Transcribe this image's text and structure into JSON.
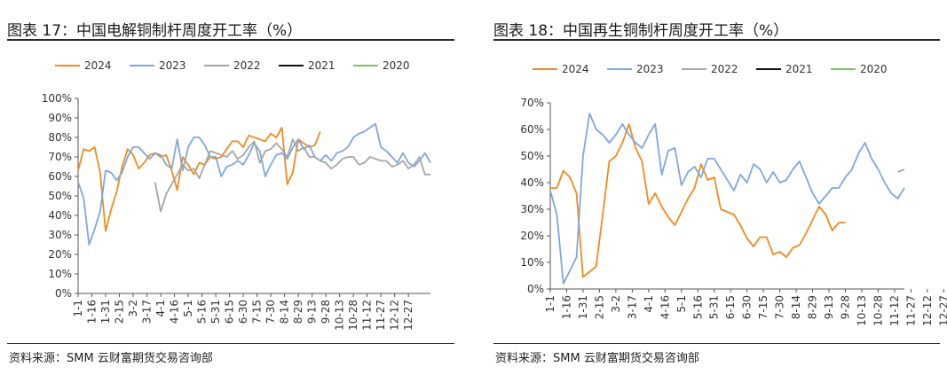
{
  "chart_data": [
    {
      "type": "line",
      "title": "图表 17：中国电解铜制杆周度开工率（%）",
      "source": "资料来源：SMM 云财富期货交易咨询部",
      "xlabel": "",
      "ylabel": "",
      "ylim": [
        0,
        100
      ],
      "y_ticks": [
        "0%",
        "10%",
        "20%",
        "30%",
        "40%",
        "50%",
        "60%",
        "70%",
        "80%",
        "90%",
        "100%"
      ],
      "x_ticks": [
        "1-1",
        "1-16",
        "1-31",
        "2-15",
        "3-2",
        "3-17",
        "4-1",
        "4-16",
        "5-1",
        "5-16",
        "5-31",
        "6-15",
        "6-30",
        "7-15",
        "7-30",
        "8-14",
        "8-29",
        "9-13",
        "9-28",
        "10-13",
        "10-28",
        "11-12",
        "11-27",
        "12-12",
        "12-27"
      ],
      "grid": false,
      "legend_position": "top",
      "series": [
        {
          "name": "2024",
          "color": "#F28A1E",
          "points": [
            [
              0,
              63
            ],
            [
              1,
              74
            ],
            [
              2,
              73
            ],
            [
              3,
              75
            ],
            [
              4,
              62
            ],
            [
              5,
              32
            ],
            [
              6,
              43
            ],
            [
              7,
              52
            ],
            [
              8,
              65
            ],
            [
              9,
              74
            ],
            [
              10,
              71
            ],
            [
              11,
              64
            ],
            [
              12,
              67
            ],
            [
              13,
              71
            ],
            [
              14,
              72
            ],
            [
              15,
              70
            ],
            [
              16,
              71
            ],
            [
              17,
              63
            ],
            [
              18,
              53
            ],
            [
              19,
              70
            ],
            [
              20,
              66
            ],
            [
              21,
              61
            ],
            [
              22,
              67
            ],
            [
              23,
              66
            ],
            [
              24,
              70
            ],
            [
              25,
              69
            ],
            [
              26,
              70
            ],
            [
              27,
              74
            ],
            [
              28,
              78
            ],
            [
              29,
              78
            ],
            [
              30,
              75
            ],
            [
              31,
              81
            ],
            [
              32,
              80
            ],
            [
              33,
              79
            ],
            [
              34,
              78
            ],
            [
              35,
              82
            ],
            [
              36,
              80
            ],
            [
              37,
              85
            ],
            [
              38,
              56
            ],
            [
              39,
              62
            ],
            [
              40,
              79
            ],
            [
              41,
              77
            ],
            [
              42,
              75
            ],
            [
              43,
              76
            ],
            [
              44,
              83
            ]
          ]
        },
        {
          "name": "2023",
          "color": "#7EA8DE",
          "points": [
            [
              0,
              57
            ],
            [
              1,
              49
            ],
            [
              2,
              25
            ],
            [
              3,
              33
            ],
            [
              4,
              42
            ],
            [
              5,
              63
            ],
            [
              6,
              62
            ],
            [
              7,
              58
            ],
            [
              8,
              62
            ],
            [
              9,
              70
            ],
            [
              10,
              75
            ],
            [
              11,
              75
            ],
            [
              12,
              72
            ],
            [
              13,
              69
            ],
            [
              14,
              72
            ],
            [
              15,
              71
            ],
            [
              16,
              66
            ],
            [
              17,
              64
            ],
            [
              18,
              79
            ],
            [
              19,
              63
            ],
            [
              20,
              75
            ],
            [
              21,
              80
            ],
            [
              22,
              80
            ],
            [
              23,
              76
            ],
            [
              24,
              70
            ],
            [
              25,
              70
            ],
            [
              26,
              60
            ],
            [
              27,
              65
            ],
            [
              28,
              66
            ],
            [
              29,
              68
            ],
            [
              30,
              66
            ],
            [
              31,
              71
            ],
            [
              32,
              77
            ],
            [
              33,
              73
            ],
            [
              34,
              60
            ],
            [
              35,
              66
            ],
            [
              36,
              71
            ],
            [
              37,
              72
            ],
            [
              38,
              69
            ],
            [
              39,
              75
            ],
            [
              40,
              79
            ],
            [
              41,
              74
            ],
            [
              42,
              76
            ],
            [
              43,
              70
            ],
            [
              44,
              68
            ],
            [
              45,
              71
            ],
            [
              46,
              68
            ],
            [
              47,
              72
            ],
            [
              48,
              73
            ],
            [
              49,
              75
            ],
            [
              50,
              80
            ],
            [
              51,
              82
            ],
            [
              52,
              83
            ],
            [
              53,
              85
            ],
            [
              54,
              87
            ],
            [
              55,
              75
            ],
            [
              56,
              73
            ],
            [
              57,
              70
            ],
            [
              58,
              67
            ],
            [
              59,
              72
            ],
            [
              60,
              67
            ],
            [
              61,
              65
            ],
            [
              62,
              68
            ],
            [
              63,
              72
            ],
            [
              64,
              67
            ]
          ]
        },
        {
          "name": "2022",
          "color": "#A6A6A6",
          "points": [
            [
              14,
              57
            ],
            [
              15,
              42
            ],
            [
              16,
              51
            ],
            [
              17,
              56
            ],
            [
              18,
              61
            ],
            [
              19,
              66
            ],
            [
              20,
              63
            ],
            [
              21,
              64
            ],
            [
              22,
              59
            ],
            [
              23,
              66
            ],
            [
              24,
              73
            ],
            [
              25,
              72
            ],
            [
              26,
              71
            ],
            [
              27,
              70
            ],
            [
              28,
              73
            ],
            [
              29,
              69
            ],
            [
              30,
              71
            ],
            [
              31,
              75
            ],
            [
              32,
              78
            ],
            [
              33,
              67
            ],
            [
              34,
              73
            ],
            [
              35,
              74
            ],
            [
              36,
              77
            ],
            [
              37,
              74
            ],
            [
              38,
              70
            ],
            [
              39,
              79
            ],
            [
              40,
              73
            ],
            [
              41,
              75
            ],
            [
              42,
              70
            ],
            [
              43,
              70
            ],
            [
              44,
              68
            ],
            [
              45,
              67
            ],
            [
              46,
              64
            ],
            [
              47,
              66
            ],
            [
              48,
              69
            ],
            [
              49,
              70
            ],
            [
              50,
              70
            ],
            [
              51,
              66
            ],
            [
              52,
              67
            ],
            [
              53,
              70
            ],
            [
              54,
              69
            ],
            [
              55,
              68
            ],
            [
              56,
              68
            ],
            [
              57,
              65
            ],
            [
              58,
              66
            ],
            [
              59,
              68
            ],
            [
              60,
              64
            ],
            [
              61,
              66
            ],
            [
              62,
              70
            ],
            [
              63,
              61
            ],
            [
              64,
              61
            ]
          ]
        },
        {
          "name": "2021",
          "color": "#111111",
          "points": []
        },
        {
          "name": "2020",
          "color": "#7CC35A",
          "points": []
        }
      ]
    },
    {
      "type": "line",
      "title": "图表 18：中国再生铜制杆周度开工率（%）",
      "source": "资料来源：SMM 云财富期货交易咨询部",
      "xlabel": "",
      "ylabel": "",
      "ylim": [
        0,
        70
      ],
      "y_ticks": [
        "0%",
        "10%",
        "20%",
        "30%",
        "40%",
        "50%",
        "60%",
        "70%"
      ],
      "x_ticks": [
        "1-1",
        "1-16",
        "1-31",
        "2-15",
        "3-2",
        "3-17",
        "4-1",
        "4-16",
        "5-1",
        "5-16",
        "5-31",
        "6-15",
        "6-30",
        "7-15",
        "7-30",
        "8-14",
        "8-29",
        "9-13",
        "9-28",
        "10-13",
        "10-28",
        "11-12",
        "11-27",
        "12-12",
        "12-27"
      ],
      "grid": false,
      "legend_position": "top",
      "series": [
        {
          "name": "2024",
          "color": "#F28A1E",
          "points": [
            [
              0,
              38
            ],
            [
              1,
              38
            ],
            [
              2,
              44.5
            ],
            [
              3,
              42
            ],
            [
              4,
              36
            ],
            [
              5,
              4.5
            ],
            [
              6,
              6.5
            ],
            [
              7,
              8.5
            ],
            [
              8,
              28
            ],
            [
              9,
              48
            ],
            [
              10,
              50
            ],
            [
              11,
              55
            ],
            [
              12,
              62
            ],
            [
              13,
              53
            ],
            [
              14,
              48
            ],
            [
              15,
              32
            ],
            [
              16,
              36
            ],
            [
              17,
              31
            ],
            [
              18,
              27
            ],
            [
              19,
              24
            ],
            [
              20,
              29
            ],
            [
              21,
              34
            ],
            [
              22,
              38
            ],
            [
              23,
              47
            ],
            [
              24,
              41
            ],
            [
              25,
              42
            ],
            [
              26,
              30
            ],
            [
              27,
              29
            ],
            [
              28,
              28
            ],
            [
              29,
              24
            ],
            [
              30,
              19
            ],
            [
              31,
              16
            ],
            [
              32,
              19.5
            ],
            [
              33,
              19.5
            ],
            [
              34,
              13
            ],
            [
              35,
              14
            ],
            [
              36,
              12
            ],
            [
              37,
              15.5
            ],
            [
              38,
              16.5
            ],
            [
              39,
              21
            ],
            [
              40,
              26
            ],
            [
              41,
              31
            ],
            [
              42,
              28
            ],
            [
              43,
              22
            ],
            [
              44,
              25
            ],
            [
              45,
              25
            ]
          ]
        },
        {
          "name": "2023",
          "color": "#7EA8DE",
          "points": [
            [
              0,
              37
            ],
            [
              1,
              28
            ],
            [
              2,
              2
            ],
            [
              3,
              7
            ],
            [
              4,
              12
            ],
            [
              5,
              50
            ],
            [
              6,
              66
            ],
            [
              7,
              60
            ],
            [
              8,
              58
            ],
            [
              9,
              55
            ],
            [
              10,
              58
            ],
            [
              11,
              62
            ],
            [
              12,
              58
            ],
            [
              13,
              55
            ],
            [
              14,
              53
            ],
            [
              15,
              58
            ],
            [
              16,
              62
            ],
            [
              17,
              43
            ],
            [
              18,
              52
            ],
            [
              19,
              53
            ],
            [
              20,
              39
            ],
            [
              21,
              44
            ],
            [
              22,
              46
            ],
            [
              23,
              42
            ],
            [
              24,
              49
            ],
            [
              25,
              49
            ],
            [
              26,
              45
            ],
            [
              27,
              41
            ],
            [
              28,
              37
            ],
            [
              29,
              43
            ],
            [
              30,
              40
            ],
            [
              31,
              47
            ],
            [
              32,
              45
            ],
            [
              33,
              40
            ],
            [
              34,
              44
            ],
            [
              35,
              40
            ],
            [
              36,
              41
            ],
            [
              37,
              45
            ],
            [
              38,
              48
            ],
            [
              39,
              42
            ],
            [
              40,
              36
            ],
            [
              41,
              32
            ],
            [
              42,
              35
            ],
            [
              43,
              38
            ],
            [
              44,
              38
            ],
            [
              45,
              42
            ],
            [
              46,
              45
            ],
            [
              47,
              51
            ],
            [
              48,
              55
            ],
            [
              49,
              49
            ],
            [
              50,
              45
            ],
            [
              51,
              40
            ],
            [
              52,
              36
            ],
            [
              53,
              34
            ],
            [
              54,
              38
            ]
          ]
        },
        {
          "name": "2022",
          "color": "#A6A6A6",
          "points": [
            [
              53,
              44
            ],
            [
              54,
              45
            ]
          ]
        },
        {
          "name": "2021",
          "color": "#111111",
          "points": []
        },
        {
          "name": "2020",
          "color": "#7CC35A",
          "points": []
        }
      ]
    }
  ]
}
